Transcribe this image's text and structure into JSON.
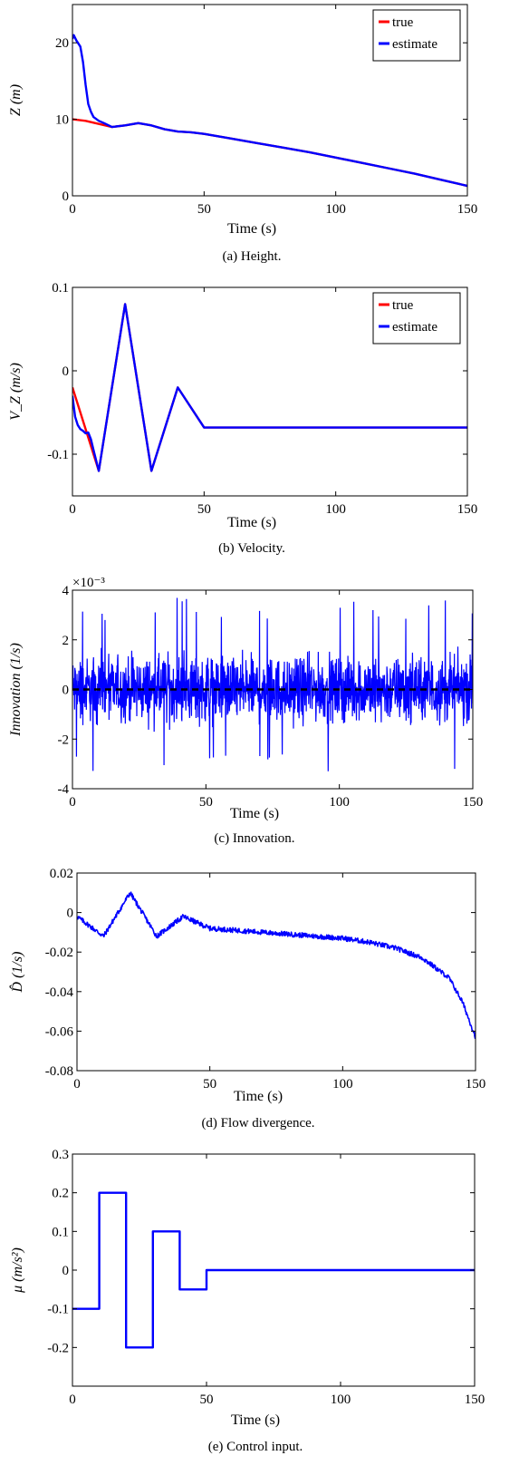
{
  "chart_data": [
    {
      "type": "line",
      "caption": "(a) Height.",
      "xlabel": "Time (s)",
      "ylabel": "Z (m)",
      "xlim": [
        0,
        150
      ],
      "ylim": [
        0,
        25
      ],
      "xticks": [
        "0",
        "50",
        "100",
        "150"
      ],
      "yticks": [
        "0",
        "10",
        "20"
      ],
      "legend": {
        "placement": "top-right",
        "entries": [
          "true",
          "estimate"
        ]
      },
      "series": [
        {
          "name": "true",
          "color": "#ff0000",
          "x": [
            0,
            5,
            10,
            15,
            20,
            25,
            30,
            35,
            40,
            45,
            50,
            60,
            70,
            80,
            90,
            100,
            110,
            120,
            130,
            140,
            150
          ],
          "y": [
            10,
            9.8,
            9.4,
            9.0,
            9.2,
            9.5,
            9.2,
            8.7,
            8.4,
            8.3,
            8.1,
            7.5,
            6.9,
            6.3,
            5.7,
            5.0,
            4.3,
            3.6,
            2.9,
            2.1,
            1.3
          ]
        },
        {
          "name": "estimate",
          "color": "#0000ff",
          "x": [
            0,
            0.5,
            1.5,
            3,
            4,
            5,
            6,
            7,
            8,
            10,
            12,
            15,
            20,
            25,
            30,
            35,
            40,
            45,
            50,
            60,
            70,
            80,
            90,
            100,
            110,
            120,
            130,
            140,
            150
          ],
          "y": [
            20.5,
            21,
            20.3,
            19.5,
            17.5,
            14.5,
            12,
            11,
            10.3,
            9.8,
            9.5,
            9.0,
            9.2,
            9.5,
            9.2,
            8.7,
            8.4,
            8.3,
            8.1,
            7.5,
            6.9,
            6.3,
            5.7,
            5.0,
            4.3,
            3.6,
            2.9,
            2.1,
            1.3
          ]
        }
      ]
    },
    {
      "type": "line",
      "caption": "(b) Velocity.",
      "xlabel": "Time (s)",
      "ylabel": "V_Z (m/s)",
      "xlim": [
        0,
        150
      ],
      "ylim": [
        -0.15,
        0.1
      ],
      "xticks": [
        "0",
        "50",
        "100",
        "150"
      ],
      "yticks": [
        "-0.1",
        "0",
        "0.1"
      ],
      "legend": {
        "placement": "top-right",
        "entries": [
          "true",
          "estimate"
        ]
      },
      "series": [
        {
          "name": "true",
          "color": "#ff0000",
          "x": [
            0,
            10,
            20,
            30,
            40,
            50,
            150
          ],
          "y": [
            -0.02,
            -0.12,
            0.08,
            -0.12,
            -0.02,
            -0.068,
            -0.068
          ]
        },
        {
          "name": "estimate",
          "color": "#0000ff",
          "x": [
            0,
            1,
            2,
            3,
            4,
            5,
            6,
            7,
            8,
            10,
            20,
            30,
            40,
            50,
            150
          ],
          "y": [
            -0.03,
            -0.055,
            -0.065,
            -0.07,
            -0.072,
            -0.075,
            -0.074,
            -0.082,
            -0.095,
            -0.12,
            0.08,
            -0.12,
            -0.02,
            -0.068,
            -0.068
          ]
        }
      ]
    },
    {
      "type": "line",
      "caption": "(c) Innovation.",
      "xlabel": "Time (s)",
      "ylabel": "Innovation (1/s)",
      "exponent": "×10⁻³",
      "xlim": [
        0,
        150
      ],
      "ylim": [
        -4,
        4
      ],
      "xticks": [
        "0",
        "50",
        "100",
        "150"
      ],
      "yticks": [
        "-4",
        "-2",
        "0",
        "2",
        "4"
      ],
      "noise_band": {
        "color": "#0000ff",
        "typical": 1.5,
        "peak_max": 3.7,
        "peak_min": -3.3
      },
      "zero_line": {
        "y": 0,
        "style": "dashed",
        "color": "#000000"
      }
    },
    {
      "type": "line",
      "caption": "(d) Flow divergence.",
      "xlabel": "Time (s)",
      "ylabel": "D̂ (1/s)",
      "xlim": [
        0,
        150
      ],
      "ylim": [
        -0.08,
        0.02
      ],
      "xticks": [
        "0",
        "50",
        "100",
        "150"
      ],
      "yticks": [
        "-0.08",
        "-0.06",
        "-0.04",
        "-0.02",
        "0",
        "0.02"
      ],
      "series": [
        {
          "name": "",
          "color": "#0000ff",
          "x": [
            0,
            10,
            20,
            30,
            40,
            50,
            60,
            70,
            80,
            90,
            100,
            110,
            120,
            130,
            140,
            145,
            150
          ],
          "y": [
            -0.002,
            -0.012,
            0.01,
            -0.012,
            -0.002,
            -0.008,
            -0.009,
            -0.01,
            -0.011,
            -0.012,
            -0.013,
            -0.015,
            -0.018,
            -0.023,
            -0.033,
            -0.045,
            -0.063
          ]
        }
      ]
    },
    {
      "type": "line",
      "caption": "(e) Control input.",
      "xlabel": "Time (s)",
      "ylabel": "μ (m/s²)",
      "xlim": [
        0,
        150
      ],
      "ylim": [
        -0.3,
        0.3
      ],
      "xticks": [
        "0",
        "50",
        "100",
        "150"
      ],
      "yticks": [
        "-0.2",
        "-0.1",
        "0",
        "0.1",
        "0.2",
        "0.3"
      ],
      "series": [
        {
          "name": "",
          "color": "#0000ff",
          "step": true,
          "x": [
            0,
            10,
            10,
            20,
            20,
            30,
            30,
            40,
            40,
            50,
            50,
            150
          ],
          "y": [
            -0.1,
            -0.1,
            0.2,
            0.2,
            -0.2,
            -0.2,
            0.1,
            0.1,
            -0.05,
            -0.05,
            0,
            0
          ]
        }
      ]
    }
  ]
}
